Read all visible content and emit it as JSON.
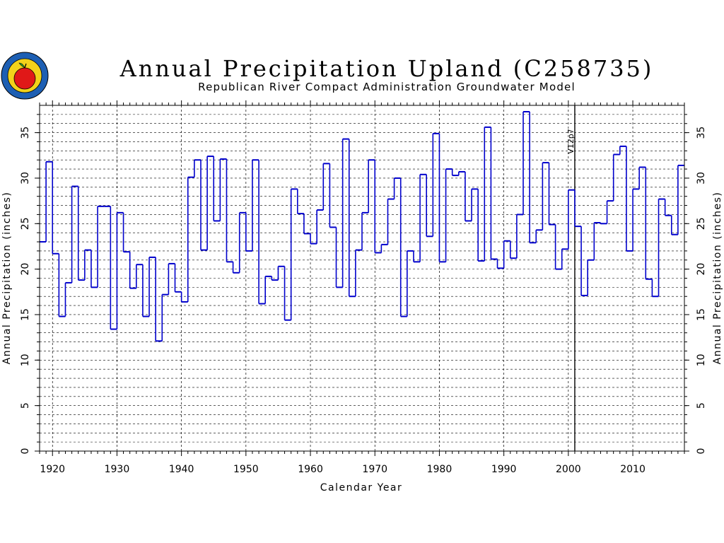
{
  "chart_data": {
    "type": "line",
    "step": true,
    "title": "Annual Precipitation Upland (C258735)",
    "subtitle": "Republican River Compact Administration Groundwater Model",
    "xlabel": "Calendar Year",
    "ylabel_left": "Annual Precipitation (inches)",
    "ylabel_right": "Annual Precipitation (inches)",
    "xlim": [
      1918,
      2018
    ],
    "ylim": [
      0,
      38
    ],
    "x_ticks": [
      "1920",
      "1930",
      "1940",
      "1950",
      "1960",
      "1970",
      "1980",
      "1990",
      "2000",
      "2010"
    ],
    "y_ticks": [
      "0",
      "5",
      "10",
      "15",
      "20",
      "25",
      "30",
      "35"
    ],
    "grid": true,
    "annotation": {
      "label": "V12p7",
      "year": 2001
    },
    "series_color": "#0000cc",
    "start_year": 1918,
    "values": [
      23.0,
      31.8,
      21.7,
      14.8,
      18.5,
      29.1,
      18.8,
      22.1,
      18.0,
      26.9,
      26.9,
      13.4,
      26.2,
      21.9,
      17.9,
      20.5,
      14.8,
      21.3,
      12.1,
      17.2,
      20.6,
      17.5,
      16.4,
      30.1,
      32.0,
      22.1,
      32.4,
      25.3,
      32.1,
      20.8,
      19.6,
      26.2,
      22.0,
      32.0,
      16.2,
      19.2,
      18.8,
      20.3,
      14.4,
      28.8,
      26.1,
      23.9,
      22.8,
      26.5,
      31.6,
      24.6,
      18.0,
      34.3,
      17.0,
      22.1,
      26.2,
      32.0,
      21.8,
      22.7,
      27.7,
      30.0,
      14.8,
      22.0,
      20.8,
      30.4,
      23.6,
      34.9,
      20.8,
      31.0,
      30.3,
      30.7,
      25.3,
      28.8,
      20.9,
      35.6,
      21.1,
      20.1,
      23.1,
      21.2,
      26.0,
      37.3,
      22.9,
      24.3,
      31.7,
      24.9,
      20.0,
      22.2,
      28.7,
      24.7,
      17.1,
      21.0,
      25.1,
      25.0,
      27.5,
      32.6,
      33.5,
      22.0,
      28.8,
      31.2,
      18.9,
      17.0,
      27.7,
      25.9,
      23.8,
      31.4
    ]
  }
}
